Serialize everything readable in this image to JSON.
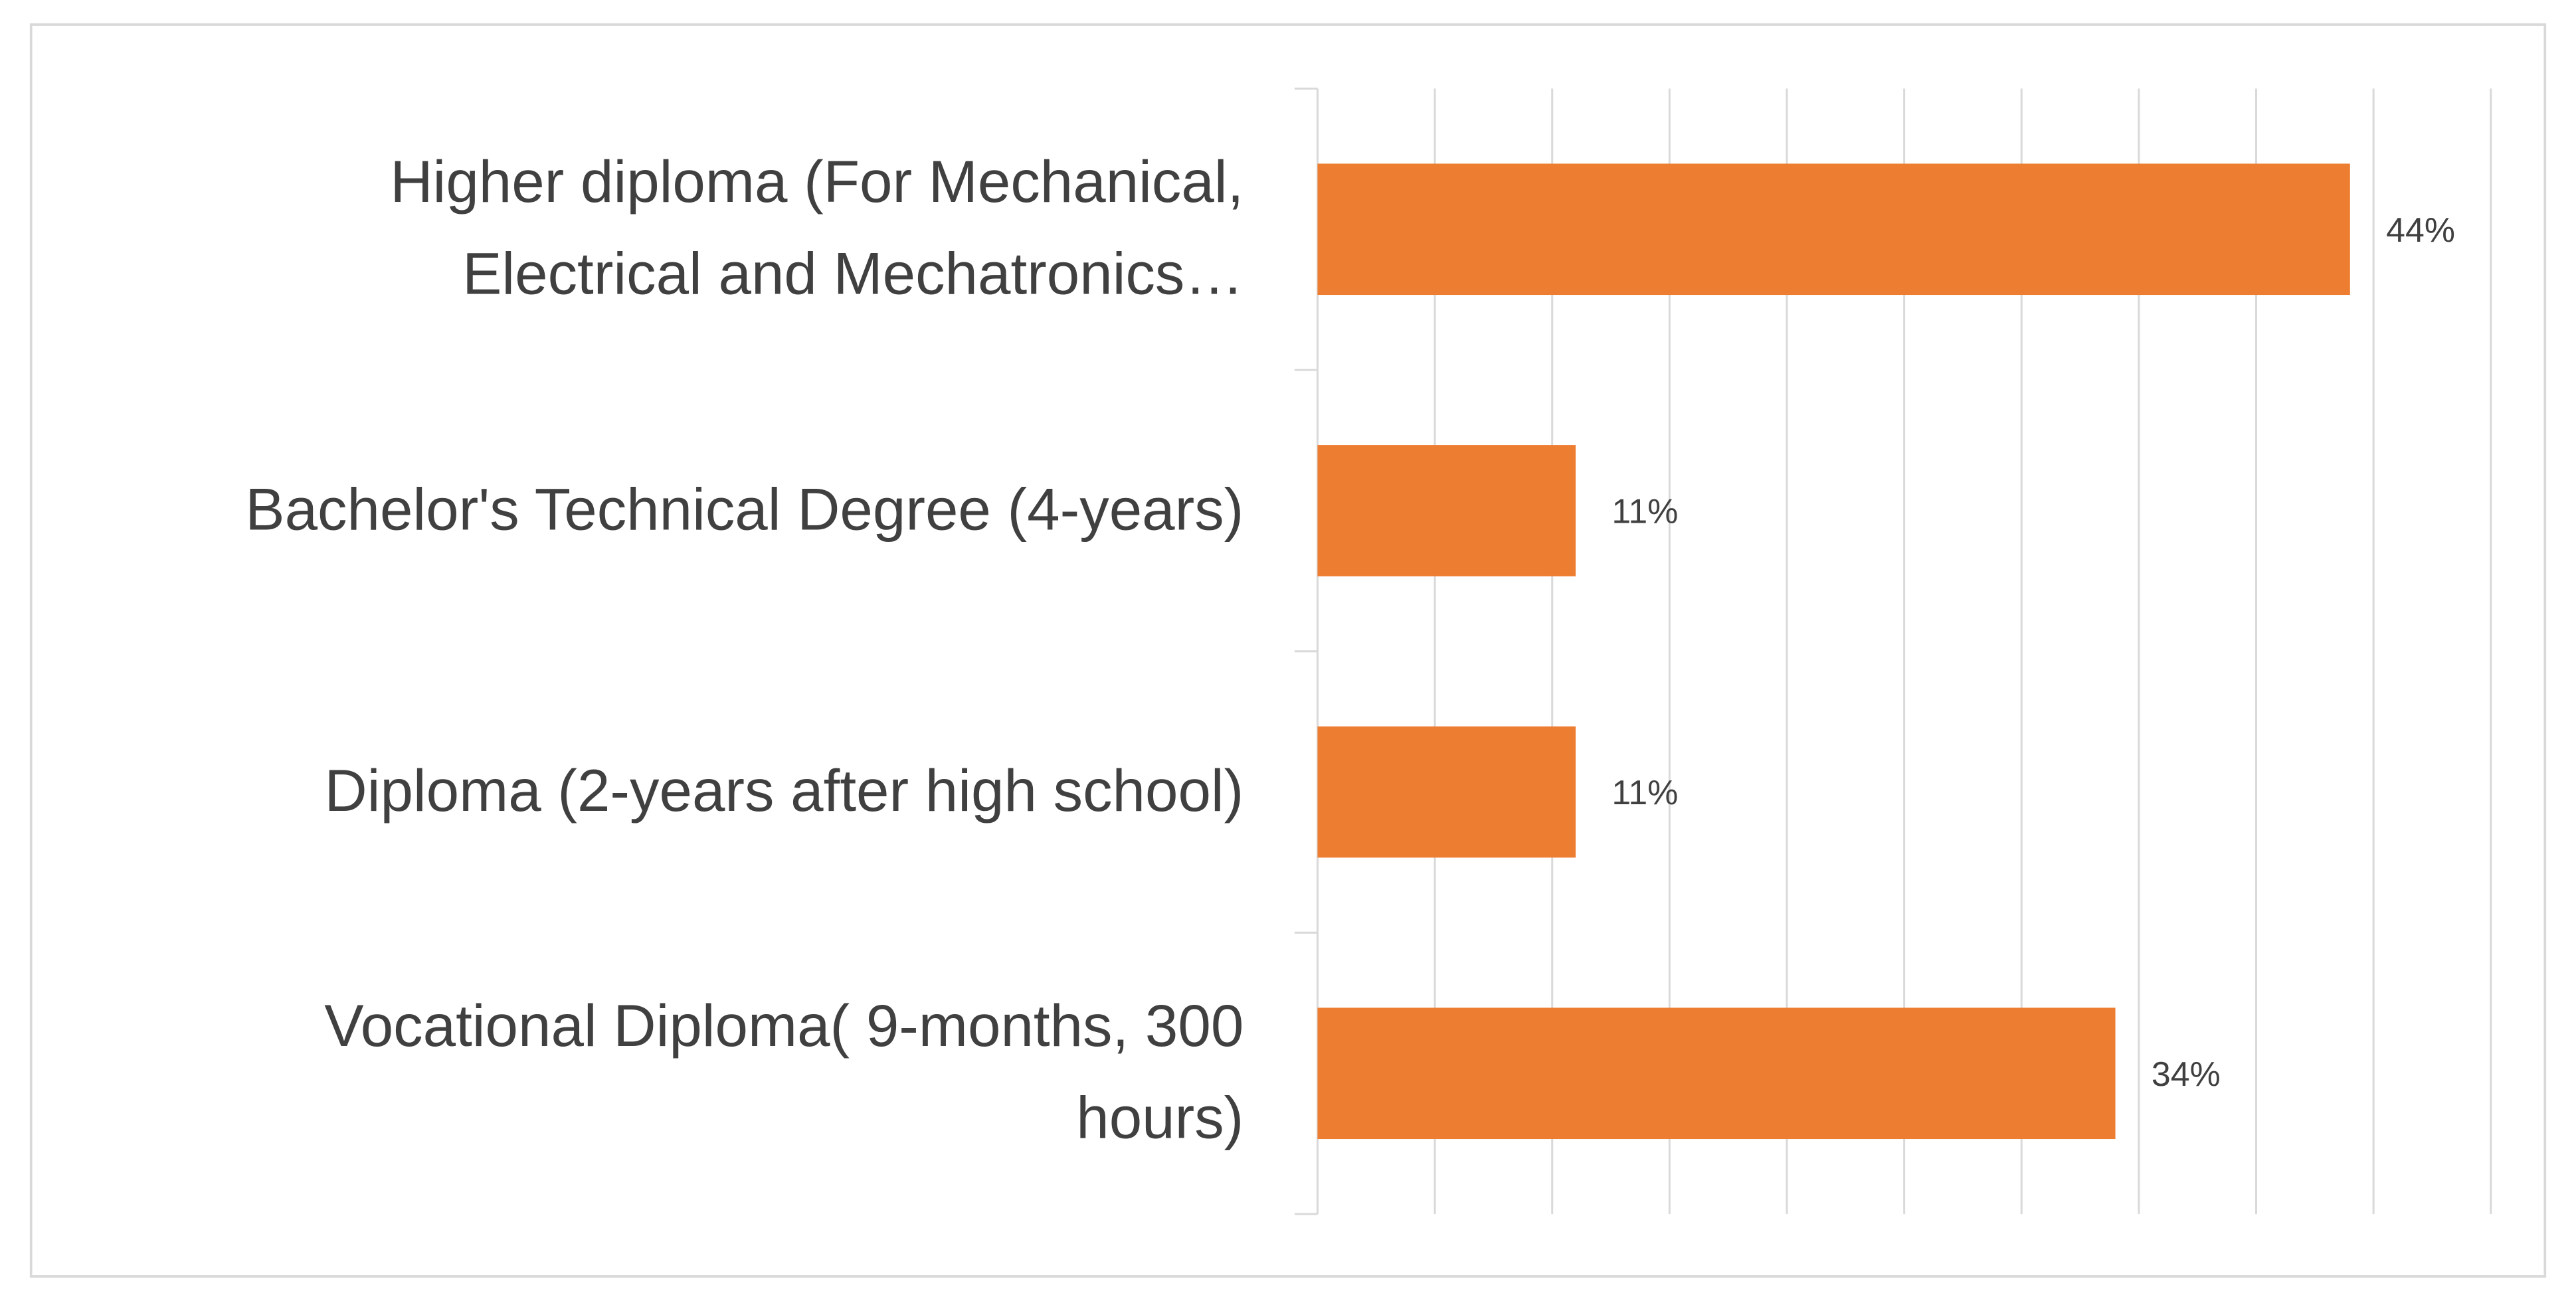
{
  "chart_data": {
    "type": "bar",
    "orientation": "horizontal",
    "categories": [
      "Higher diploma (For Mechanical,\nElectrical and Mechatronics…",
      "Bachelor's Technical Degree (4-years)",
      "Diploma (2-years after high school)",
      "Vocational Diploma( 9-months, 300\nhours)"
    ],
    "values": [
      44,
      11,
      11,
      34
    ],
    "value_labels": [
      "44%",
      "11%",
      "11%",
      "34%"
    ],
    "color": "#ed7d31",
    "xlim": [
      0,
      50
    ],
    "xticks": [
      0,
      5,
      10,
      15,
      20,
      25,
      30,
      35,
      40,
      45,
      50
    ],
    "grid": true
  }
}
